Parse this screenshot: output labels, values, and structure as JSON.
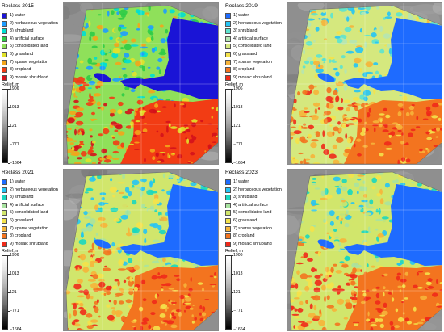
{
  "panels": [
    {
      "title": "Reclass 2015",
      "legend": [
        {
          "label": "1) water",
          "color": "#1a14d6"
        },
        {
          "label": "2) herbaceous vegetation",
          "color": "#1e9cff"
        },
        {
          "label": "3) shrubland",
          "color": "#00dfd2"
        },
        {
          "label": "4) artificial surface",
          "color": "#2dcc46"
        },
        {
          "label": "5) consolidated land",
          "color": "#8fe05a"
        },
        {
          "label": "6) grassland",
          "color": "#e1e22a"
        },
        {
          "label": "7) sparse vegetation",
          "color": "#f3a51a"
        },
        {
          "label": "8) cropland",
          "color": "#f23c14"
        },
        {
          "label": "9) mosaic shrubland",
          "color": "#d4111b"
        }
      ]
    },
    {
      "title": "Reclass 2019",
      "legend": [
        {
          "label": "1) water",
          "color": "#1e6bff"
        },
        {
          "label": "2) herbaceous vegetation",
          "color": "#25c4f5"
        },
        {
          "label": "3) shrubland",
          "color": "#5de3cf"
        },
        {
          "label": "4) artificial surface",
          "color": "#b5e6b3"
        },
        {
          "label": "5) consolidated land",
          "color": "#d5e87e"
        },
        {
          "label": "6) grassland",
          "color": "#f4e24a"
        },
        {
          "label": "7) sparse vegetation",
          "color": "#f6b43a"
        },
        {
          "label": "8) cropland",
          "color": "#f3741f"
        },
        {
          "label": "9) mosaic shrubland",
          "color": "#ef2a1a"
        }
      ]
    },
    {
      "title": "Reclass 2021",
      "legend": [
        {
          "label": "1) water",
          "color": "#1e6bff"
        },
        {
          "label": "2) herbaceous vegetation",
          "color": "#25c4f5"
        },
        {
          "label": "3) shrubland",
          "color": "#19d7c0"
        },
        {
          "label": "4) artificial surface",
          "color": "#a8e3a0"
        },
        {
          "label": "5) consolidated land",
          "color": "#d1e66c"
        },
        {
          "label": "6) grassland",
          "color": "#f4e24a"
        },
        {
          "label": "7) sparse vegetation",
          "color": "#f6b43a"
        },
        {
          "label": "8) cropland",
          "color": "#f3741f"
        },
        {
          "label": "9) mosaic shrubland",
          "color": "#ef2a1a"
        }
      ]
    },
    {
      "title": "Reclass 2023",
      "legend": [
        {
          "label": "1) water",
          "color": "#1e6bff"
        },
        {
          "label": "2) herbaceous vegetation",
          "color": "#25c4f5"
        },
        {
          "label": "3) shrubland",
          "color": "#19d7c0"
        },
        {
          "label": "4) artificial surface",
          "color": "#a8e3a0"
        },
        {
          "label": "5) consolidated land",
          "color": "#d1e66c"
        },
        {
          "label": "6) grassland",
          "color": "#f4e24a"
        },
        {
          "label": "7) sparse vegetation",
          "color": "#f6b43a"
        },
        {
          "label": "8) cropland",
          "color": "#f3741f"
        },
        {
          "label": "9) mosaic shrubland",
          "color": "#ef2a1a"
        }
      ]
    }
  ],
  "relief": {
    "title": "Relief, m",
    "ticks": [
      "1906",
      "1013",
      "121",
      "−771",
      "−1664"
    ]
  }
}
